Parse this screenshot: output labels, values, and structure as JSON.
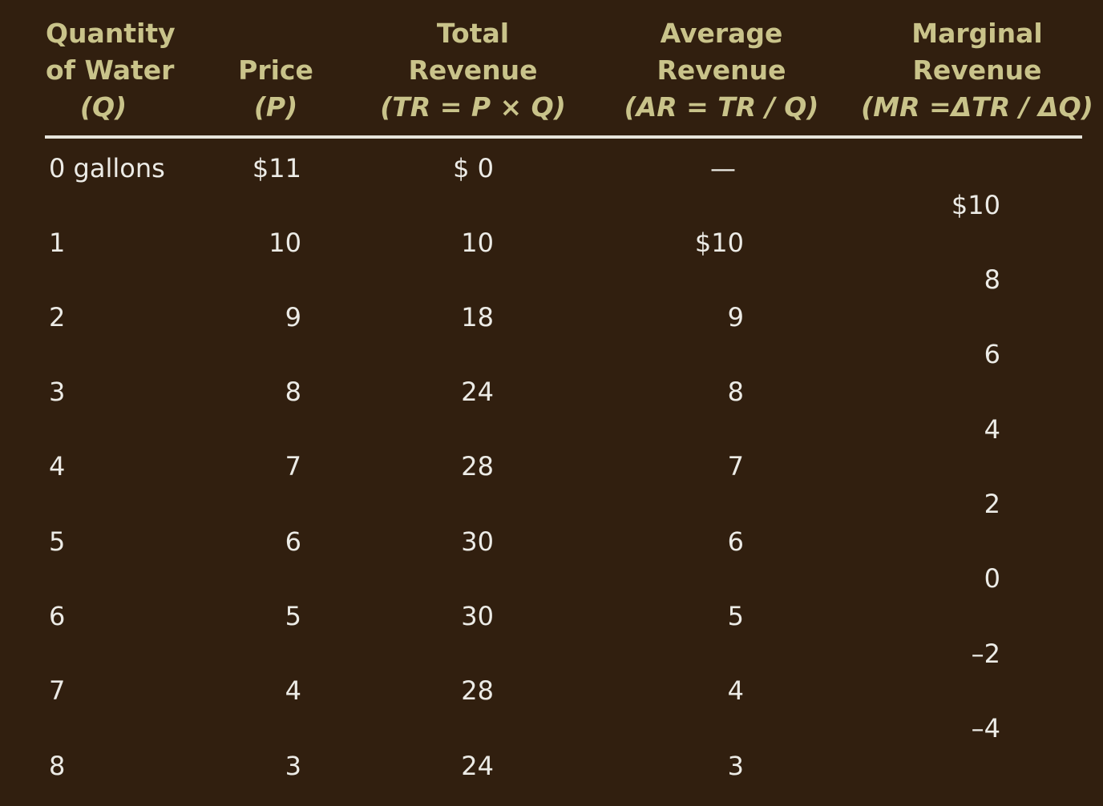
{
  "headers": {
    "quantity": [
      "Quantity",
      "of Water",
      "(Q)"
    ],
    "price": [
      "Price",
      "(P)"
    ],
    "total_revenue": [
      "Total",
      "Revenue",
      "(TR = P × Q)"
    ],
    "average_revenue": [
      "Average",
      "Revenue",
      "(AR  = TR / Q)"
    ],
    "marginal_revenue": [
      "Marginal",
      "Revenue",
      "(MR =ΔTR / ΔQ)"
    ]
  },
  "rows": [
    {
      "q": "0 gallons",
      "p": "$11",
      "tr": "$  0",
      "ar": "—"
    },
    {
      "q": "1",
      "p": "10",
      "tr": "10",
      "ar": "$10"
    },
    {
      "q": "2",
      "p": "9",
      "tr": "18",
      "ar": "9"
    },
    {
      "q": "3",
      "p": "8",
      "tr": "24",
      "ar": "8"
    },
    {
      "q": "4",
      "p": "7",
      "tr": "28",
      "ar": "7"
    },
    {
      "q": "5",
      "p": "6",
      "tr": "30",
      "ar": "6"
    },
    {
      "q": "6",
      "p": "5",
      "tr": "30",
      "ar": "5"
    },
    {
      "q": "7",
      "p": "4",
      "tr": "28",
      "ar": "4"
    },
    {
      "q": "8",
      "p": "3",
      "tr": "24",
      "ar": "3"
    }
  ],
  "marginal": [
    "$10",
    "8",
    "6",
    "4",
    "2",
    "0",
    "–2",
    "–4"
  ],
  "colors": {
    "background": "#311f0f",
    "header_text": "#c9c38a",
    "body_text": "#ecebe6",
    "rule": "#e6e4dc"
  }
}
